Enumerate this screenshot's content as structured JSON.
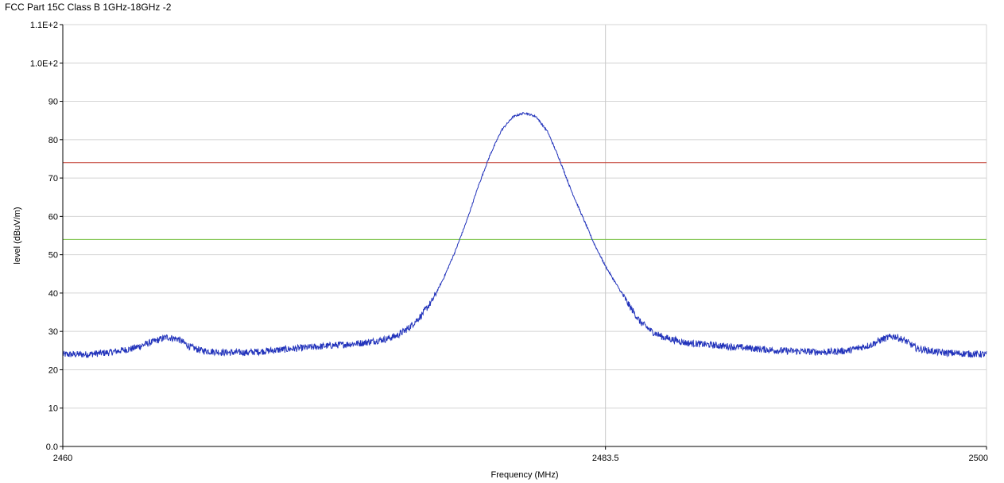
{
  "title": "FCC Part 15C  Class B 1GHz-18GHz -2",
  "chart_data": {
    "type": "line",
    "title": "FCC Part 15C  Class B 1GHz-18GHz -2",
    "xlabel": "Frequency (MHz)",
    "ylabel": "level (dBuV/m)",
    "xlim": [
      2460,
      2500
    ],
    "ylim": [
      0,
      110
    ],
    "x_ticks": [
      {
        "value": 2460,
        "label": "2460"
      },
      {
        "value": 2483.5,
        "label": "2483.5"
      },
      {
        "value": 2500,
        "label": "2500"
      }
    ],
    "y_ticks": [
      {
        "value": 0,
        "label": "0.0"
      },
      {
        "value": 10,
        "label": "10"
      },
      {
        "value": 20,
        "label": "20"
      },
      {
        "value": 30,
        "label": "30"
      },
      {
        "value": 40,
        "label": "40"
      },
      {
        "value": 50,
        "label": "50"
      },
      {
        "value": 60,
        "label": "60"
      },
      {
        "value": 70,
        "label": "70"
      },
      {
        "value": 80,
        "label": "80"
      },
      {
        "value": 90,
        "label": "90"
      },
      {
        "value": 100,
        "label": "1.0E+2"
      },
      {
        "value": 110,
        "label": "1.1E+2"
      }
    ],
    "grid": true,
    "limit_lines": [
      {
        "value": 74,
        "color": "#c0392b"
      },
      {
        "value": 54,
        "color": "#7cc24a"
      }
    ],
    "vertical_marker": 2483.5,
    "series": [
      {
        "color": "#2233bb",
        "x": [
          2460,
          2461,
          2462,
          2463,
          2464,
          2464.5,
          2465,
          2465.5,
          2466,
          2467,
          2468,
          2469,
          2470,
          2471,
          2472,
          2473,
          2474,
          2474.5,
          2475,
          2475.5,
          2476,
          2476.5,
          2477,
          2477.5,
          2478,
          2478.5,
          2479,
          2479.5,
          2480,
          2480.5,
          2481,
          2481.5,
          2482,
          2482.5,
          2483,
          2483.5,
          2484,
          2484.5,
          2485,
          2485.5,
          2486,
          2487,
          2488,
          2489,
          2490,
          2491,
          2492,
          2493,
          2494,
          2495,
          2495.5,
          2496,
          2496.5,
          2497,
          2498,
          2499,
          2500
        ],
        "y": [
          24,
          24,
          24.5,
          25.5,
          27.5,
          28.5,
          28,
          26,
          25,
          24.5,
          24.5,
          25,
          25.5,
          26,
          26.5,
          27,
          28,
          29,
          31,
          34,
          38,
          44,
          51,
          59,
          68,
          76,
          82.5,
          86,
          87,
          86,
          82,
          75,
          67,
          60,
          53,
          47,
          42,
          37,
          32.5,
          30,
          28.5,
          27,
          26.5,
          26,
          25.5,
          25,
          24.8,
          24.6,
          25,
          26.5,
          28,
          28.8,
          27.5,
          25.5,
          24.5,
          24.2,
          24
        ]
      }
    ]
  }
}
